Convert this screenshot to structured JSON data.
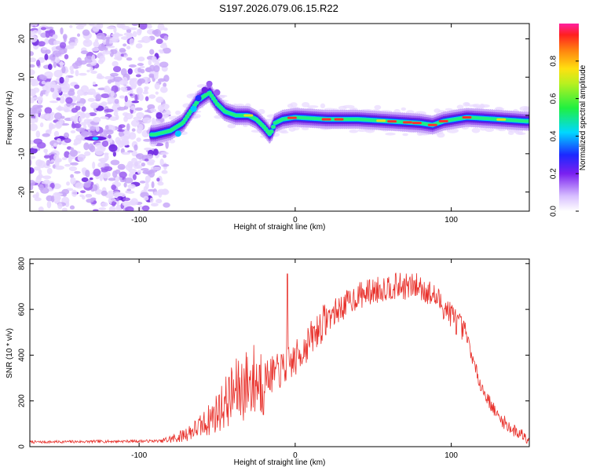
{
  "title": "S197.2026.079.06.15.R22",
  "spectrogram": {
    "type": "heatmap",
    "xlabel": "Height of straight line (km)",
    "ylabel": "Frequency (Hz)",
    "xlim": [
      -170,
      150
    ],
    "ylim": [
      -25,
      24
    ],
    "xticks": [
      -100,
      0,
      100
    ],
    "yticks": [
      -20,
      -10,
      0,
      10,
      20
    ],
    "colorbar": {
      "label": "Normalized spectral amplitude",
      "range": [
        0,
        1
      ],
      "ticks": [
        0.0,
        0.2,
        0.4,
        0.6,
        0.8
      ]
    },
    "ridge": {
      "x": [
        -90,
        -80,
        -72,
        -62,
        -55,
        -50,
        -45,
        -38,
        -30,
        -25,
        -20,
        -16,
        -13,
        -8,
        0,
        20,
        40,
        60,
        80,
        88,
        95,
        110,
        130,
        148
      ],
      "y": [
        -5,
        -4,
        -2,
        4,
        6,
        3,
        1,
        0,
        0,
        -1,
        -3,
        -5,
        -2,
        -1,
        -0.5,
        -1,
        -1,
        -1.5,
        -2,
        -2.5,
        -1.5,
        -0.5,
        -1,
        -1.5
      ]
    },
    "colors": [
      "#e8d8ff",
      "#c8a8f8",
      "#9a5cf0",
      "#6a20e0",
      "#2030ff",
      "#00c8ff",
      "#20f080",
      "#e0e020",
      "#ff3030"
    ]
  },
  "snr": {
    "type": "line",
    "xlabel": "Height of straight line (km)",
    "ylabel": "SNR (10 * v/v)",
    "xlim": [
      -170,
      150
    ],
    "ylim": [
      0,
      820
    ],
    "xticks": [
      -100,
      0,
      100
    ],
    "yticks": [
      0,
      200,
      400,
      600,
      800
    ],
    "line_color": "#e8302a",
    "envelope": {
      "x": [
        -170,
        -85,
        -75,
        -60,
        -50,
        -40,
        -30,
        -20,
        -10,
        0,
        20,
        40,
        60,
        80,
        90,
        100,
        110,
        115,
        120,
        130,
        140,
        150
      ],
      "y": [
        20,
        25,
        40,
        90,
        150,
        230,
        280,
        300,
        330,
        380,
        560,
        660,
        700,
        700,
        650,
        580,
        480,
        350,
        250,
        130,
        70,
        40
      ]
    },
    "spike": {
      "x": -5,
      "y": 755
    }
  }
}
